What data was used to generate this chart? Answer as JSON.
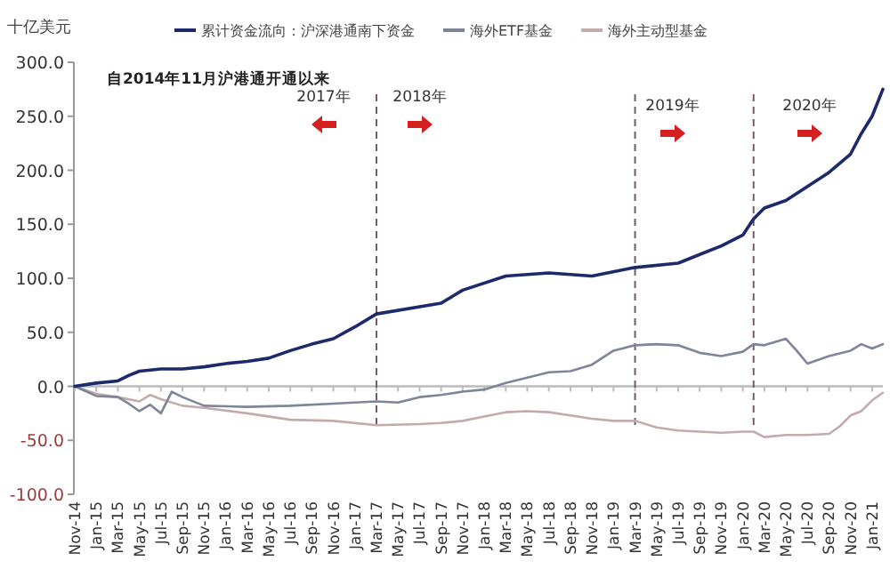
{
  "chart_data": {
    "type": "line",
    "ylabel": "十亿美元",
    "legend": "top",
    "line_style": "solid",
    "marker": "none",
    "grid": false,
    "annotations": [
      "自2014年11月沪港通开通以来",
      "2017年",
      "2018年",
      "2019年",
      "2020年"
    ],
    "ref_lines": [
      {
        "axis": "x",
        "value": "2017-03",
        "color": "#7a5a6a",
        "line_style": "dashed"
      },
      {
        "axis": "x",
        "value": "2019-03",
        "color": "#7a5a6a",
        "line_style": "dashed"
      },
      {
        "axis": "x",
        "value": "2020-02",
        "color": "#7a5a6a",
        "line_style": "dashed"
      }
    ],
    "xlim": [
      "2014-11",
      "2021-02"
    ],
    "ylim": [
      -100,
      300
    ],
    "yticks": [
      {
        "value": -100,
        "label": "-100.0"
      },
      {
        "value": -50,
        "label": "-50.0"
      },
      {
        "value": 0,
        "label": "0.0"
      },
      {
        "value": 50,
        "label": "50.0"
      },
      {
        "value": 100,
        "label": "100.0"
      },
      {
        "value": 150,
        "label": "150.0"
      },
      {
        "value": 200,
        "label": "200.0"
      },
      {
        "value": 250,
        "label": "250.0"
      },
      {
        "value": 300,
        "label": "300.0"
      }
    ],
    "xticks": [
      {
        "value": "2014-11",
        "label": "Nov-14"
      },
      {
        "value": "2015-01",
        "label": "Jan-15"
      },
      {
        "value": "2015-03",
        "label": "Mar-15"
      },
      {
        "value": "2015-05",
        "label": "May-15"
      },
      {
        "value": "2015-07",
        "label": "Jul-15"
      },
      {
        "value": "2015-09",
        "label": "Sep-15"
      },
      {
        "value": "2015-11",
        "label": "Nov-15"
      },
      {
        "value": "2016-01",
        "label": "Jan-16"
      },
      {
        "value": "2016-03",
        "label": "Mar-16"
      },
      {
        "value": "2016-05",
        "label": "May-16"
      },
      {
        "value": "2016-07",
        "label": "Jul-16"
      },
      {
        "value": "2016-09",
        "label": "Sep-16"
      },
      {
        "value": "2016-11",
        "label": "Nov-16"
      },
      {
        "value": "2017-01",
        "label": "Jan-17"
      },
      {
        "value": "2017-03",
        "label": "Mar-17"
      },
      {
        "value": "2017-05",
        "label": "May-17"
      },
      {
        "value": "2017-07",
        "label": "Jul-17"
      },
      {
        "value": "2017-09",
        "label": "Sep-17"
      },
      {
        "value": "2017-11",
        "label": "Nov-17"
      },
      {
        "value": "2018-01",
        "label": "Jan-18"
      },
      {
        "value": "2018-03",
        "label": "Mar-18"
      },
      {
        "value": "2018-05",
        "label": "May-18"
      },
      {
        "value": "2018-07",
        "label": "Jul-18"
      },
      {
        "value": "2018-09",
        "label": "Sep-18"
      },
      {
        "value": "2018-11",
        "label": "Nov-18"
      },
      {
        "value": "2019-01",
        "label": "Jan-19"
      },
      {
        "value": "2019-03",
        "label": "Mar-19"
      },
      {
        "value": "2019-05",
        "label": "May-19"
      },
      {
        "value": "2019-07",
        "label": "Jul-19"
      },
      {
        "value": "2019-09",
        "label": "Sep-19"
      },
      {
        "value": "2019-11",
        "label": "Nov-19"
      },
      {
        "value": "2020-01",
        "label": "Jan-20"
      },
      {
        "value": "2020-03",
        "label": "Mar-20"
      },
      {
        "value": "2020-05",
        "label": "May-20"
      },
      {
        "value": "2020-07",
        "label": "Jul-20"
      },
      {
        "value": "2020-09",
        "label": "Sep-20"
      },
      {
        "value": "2020-11",
        "label": "Nov-20"
      },
      {
        "value": "2021-01",
        "label": "Jan-21"
      }
    ],
    "series": [
      {
        "name": "累计资金流向：沪深港通南下资金",
        "color": "#1c2a6b",
        "x": [
          "2014-11",
          "2015-01",
          "2015-03",
          "2015-04",
          "2015-05",
          "2015-07",
          "2015-09",
          "2015-11",
          "2016-01",
          "2016-03",
          "2016-05",
          "2016-07",
          "2016-09",
          "2016-11",
          "2017-01",
          "2017-03",
          "2017-09",
          "2017-11",
          "2018-03",
          "2018-07",
          "2018-11",
          "2019-03",
          "2019-07",
          "2019-09",
          "2019-11",
          "2020-01",
          "2020-02",
          "2020-03",
          "2020-05",
          "2020-07",
          "2020-09",
          "2020-11",
          "2020-12",
          "2021-01",
          "2021-02"
        ],
        "values": [
          0,
          3,
          5,
          10,
          14,
          16,
          16,
          18,
          21,
          23,
          26,
          33,
          39,
          44,
          55,
          67,
          77,
          89,
          102,
          105,
          102,
          110,
          114,
          122,
          130,
          140,
          155,
          165,
          172,
          185,
          198,
          215,
          234,
          250,
          275
        ]
      },
      {
        "name": "海外ETF基金",
        "color": "#7f8598",
        "x": [
          "2014-11",
          "2015-01",
          "2015-03",
          "2015-04",
          "2015-05",
          "2015-06",
          "2015-07",
          "2015-08",
          "2015-09",
          "2015-11",
          "2016-03",
          "2016-07",
          "2016-11",
          "2017-03",
          "2017-05",
          "2017-07",
          "2017-09",
          "2017-11",
          "2018-01",
          "2018-03",
          "2018-05",
          "2018-07",
          "2018-09",
          "2018-11",
          "2019-01",
          "2019-03",
          "2019-05",
          "2019-07",
          "2019-09",
          "2019-11",
          "2020-01",
          "2020-02",
          "2020-03",
          "2020-05",
          "2020-06",
          "2020-07",
          "2020-09",
          "2020-11",
          "2020-12",
          "2021-01",
          "2021-02"
        ],
        "values": [
          0,
          -9,
          -10,
          -16,
          -23,
          -17,
          -25,
          -5,
          -10,
          -18,
          -19,
          -18,
          -16,
          -14,
          -15,
          -10,
          -8,
          -5,
          -3,
          3,
          8,
          13,
          14,
          20,
          33,
          38,
          39,
          38,
          31,
          28,
          32,
          39,
          38,
          44,
          33,
          21,
          28,
          33,
          39,
          35,
          39
        ]
      },
      {
        "name": "海外主动型基金",
        "color": "#c4abab",
        "x": [
          "2014-11",
          "2015-01",
          "2015-03",
          "2015-05",
          "2015-06",
          "2015-07",
          "2015-09",
          "2015-11",
          "2016-03",
          "2016-07",
          "2016-11",
          "2017-03",
          "2017-07",
          "2017-09",
          "2017-11",
          "2018-01",
          "2018-03",
          "2018-05",
          "2018-07",
          "2018-09",
          "2018-11",
          "2019-01",
          "2019-03",
          "2019-05",
          "2019-07",
          "2019-09",
          "2019-11",
          "2020-01",
          "2020-02",
          "2020-03",
          "2020-05",
          "2020-07",
          "2020-09",
          "2020-10",
          "2020-11",
          "2020-12",
          "2021-01",
          "2021-02"
        ],
        "values": [
          0,
          -7,
          -10,
          -14,
          -8,
          -12,
          -18,
          -20,
          -25,
          -31,
          -32,
          -36,
          -35,
          -34,
          -32,
          -28,
          -24,
          -23,
          -24,
          -27,
          -30,
          -32,
          -32,
          -38,
          -41,
          -42,
          -43,
          -42,
          -42,
          -47,
          -45,
          -45,
          -44,
          -37,
          -27,
          -23,
          -13,
          -6
        ]
      }
    ]
  }
}
